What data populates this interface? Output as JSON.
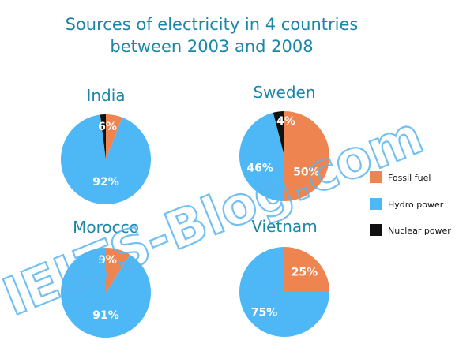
{
  "chart_data": {
    "type": "pie",
    "title_lines": [
      "Sources of electricity in 4 countries",
      "between 2003 and 2008"
    ],
    "legend_placement": "right",
    "legend": [
      {
        "name": "Fossil fuel",
        "color": "#EE8551"
      },
      {
        "name": "Hydro power",
        "color": "#4DB8F5"
      },
      {
        "name": "Nuclear power",
        "color": "#111111"
      }
    ],
    "charts": [
      {
        "country": "India",
        "slices": [
          {
            "category": "Fossil fuel",
            "value": 6,
            "label": "6%"
          },
          {
            "category": "Hydro power",
            "value": 92,
            "label": "92%"
          },
          {
            "category": "Nuclear power",
            "value": 2,
            "label": ""
          }
        ]
      },
      {
        "country": "Sweden",
        "slices": [
          {
            "category": "Fossil fuel",
            "value": 50,
            "label": "50%"
          },
          {
            "category": "Hydro power",
            "value": 46,
            "label": "46%"
          },
          {
            "category": "Nuclear power",
            "value": 4,
            "label": "4%"
          }
        ]
      },
      {
        "country": "Morocco",
        "slices": [
          {
            "category": "Fossil fuel",
            "value": 9,
            "label": "9%"
          },
          {
            "category": "Hydro power",
            "value": 91,
            "label": "91%"
          }
        ]
      },
      {
        "country": "Vietnam",
        "slices": [
          {
            "category": "Fossil fuel",
            "value": 25,
            "label": "25%"
          },
          {
            "category": "Hydro power",
            "value": 75,
            "label": "75%"
          }
        ]
      }
    ],
    "watermark": "IELTS-Blog.com"
  },
  "colors": {
    "title": "#1B86A8",
    "label_text": "#ffffff",
    "watermark": "#5BB4F0"
  }
}
